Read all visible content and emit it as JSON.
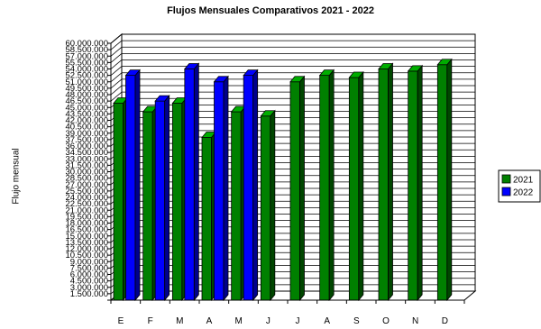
{
  "chart_data": {
    "type": "bar",
    "title": "Flujos Mensuales Comparativos 2021 - 2022",
    "ylabel": "Flujo mensual",
    "xlabel": "",
    "categories": [
      "E",
      "F",
      "M",
      "A",
      "M",
      "J",
      "J",
      "A",
      "S",
      "O",
      "N",
      "D"
    ],
    "y_ticks": [
      "1.500.000",
      "3.000.000",
      "4.500.000",
      "6.000.000",
      "7.500.000",
      "9.000.000",
      "10.500.000",
      "12.000.000",
      "13.500.000",
      "15.000.000",
      "16.500.000",
      "18.000.000",
      "19.500.000",
      "21.000.000",
      "22.500.000",
      "24.000.000",
      "25.500.000",
      "27.000.000",
      "28.500.000",
      "30.000.000",
      "31.500.000",
      "33.000.000",
      "34.500.000",
      "36.000.000",
      "37.500.000",
      "39.000.000",
      "40.500.000",
      "42.000.000",
      "43.500.000",
      "45.000.000",
      "46.500.000",
      "48.000.000",
      "49.500.000",
      "51.000.000",
      "52.500.000",
      "54.000.000",
      "55.500.000",
      "57.000.000",
      "58.500.000",
      "60.000.000"
    ],
    "ylim": [
      0,
      60000000
    ],
    "series": [
      {
        "name": "2021",
        "color": "#008000",
        "values": [
          46000000,
          44000000,
          46000000,
          38000000,
          44000000,
          43000000,
          51000000,
          52500000,
          52000000,
          54000000,
          53500000,
          55000000
        ]
      },
      {
        "name": "2022",
        "color": "#0000ff",
        "values": [
          52500000,
          46500000,
          54000000,
          51000000,
          52500000,
          null,
          null,
          null,
          null,
          null,
          null,
          null
        ]
      }
    ],
    "legend_position": "right",
    "grid": true
  }
}
